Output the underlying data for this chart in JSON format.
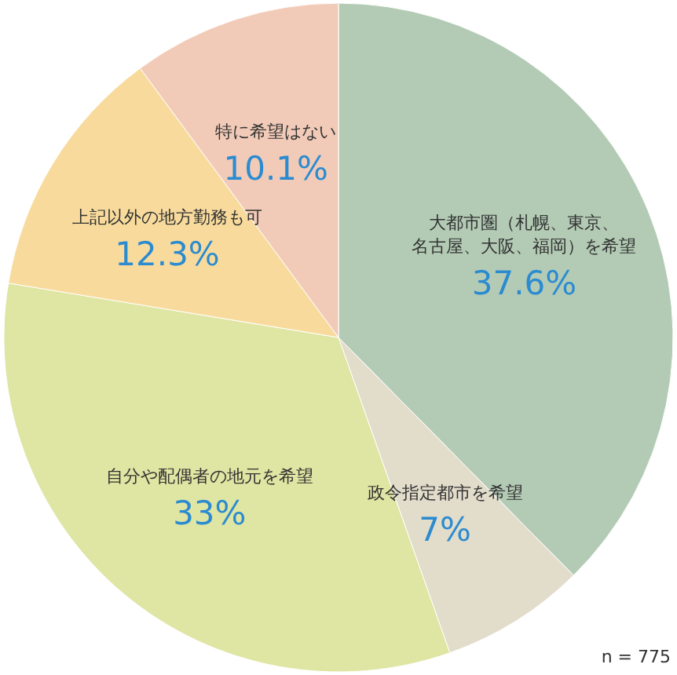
{
  "chart_data": {
    "type": "pie",
    "categories": [
      "大都市圏（札幌、東京、名古屋、大阪、福岡）を希望",
      "政令指定都市を希望",
      "自分や配偶者の地元を希望",
      "上記以外の地方勤務も可",
      "特に希望はない"
    ],
    "values": [
      37.6,
      7,
      33,
      12.3,
      10.1
    ],
    "colors": [
      "#b3cbb5",
      "#e2dccb",
      "#dfe5a2",
      "#f8db9c",
      "#f2cbb8"
    ],
    "value_labels": [
      "37.6%",
      "7%",
      "33%",
      "12.3%",
      "10.1%"
    ],
    "annotations": [
      "n = 775"
    ]
  }
}
